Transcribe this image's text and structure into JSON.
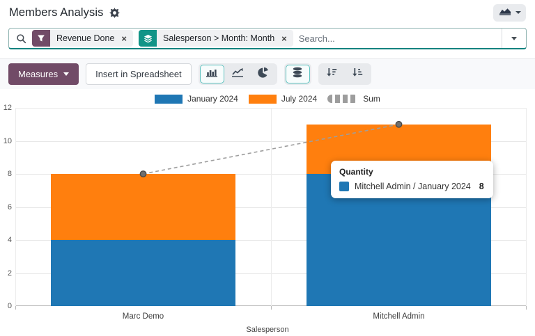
{
  "header": {
    "title": "Members Analysis"
  },
  "view_switcher": {
    "icon": "area-chart-icon"
  },
  "search": {
    "placeholder": "Search...",
    "facets": [
      {
        "kind": "filter",
        "label": "Revenue Done",
        "close": "×",
        "badge_color": "#714B67"
      },
      {
        "kind": "groupby",
        "label": "Salesperson > Month: Month",
        "close": "×",
        "badge_color": "#119487"
      }
    ]
  },
  "toolbar": {
    "measures_label": "Measures",
    "insert_spreadsheet_label": "Insert in Spreadsheet",
    "chart_type_buttons": [
      {
        "name": "bar",
        "active": true
      },
      {
        "name": "line",
        "active": false
      },
      {
        "name": "pie",
        "active": false
      }
    ],
    "stacked_button": {
      "name": "stacked",
      "active": true
    },
    "sort_buttons": [
      {
        "name": "sort-descending",
        "active": false
      },
      {
        "name": "sort-ascending",
        "active": false
      }
    ]
  },
  "chart_data": {
    "type": "bar",
    "stacked": true,
    "categories": [
      "Marc Demo",
      "Mitchell Admin"
    ],
    "series": [
      {
        "name": "January 2024",
        "color": "#1f77b4",
        "values": [
          4,
          8
        ]
      },
      {
        "name": "July 2024",
        "color": "#ff7f0e",
        "values": [
          4,
          3
        ]
      }
    ],
    "sum_line": {
      "name": "Sum",
      "values": [
        8,
        11
      ],
      "color": "#9e9e9e",
      "dashed": true
    },
    "xlabel": "Salesperson",
    "ylabel": "",
    "ylim": [
      0,
      12
    ],
    "yticks": [
      0,
      2,
      4,
      6,
      8,
      10,
      12
    ],
    "legend_position": "top",
    "grid": true
  },
  "tooltip": {
    "title": "Quantity",
    "rows": [
      {
        "swatch_color": "#1f77b4",
        "label": "Mitchell Admin / January 2024",
        "value": "8"
      }
    ]
  },
  "colors": {
    "accent_purple": "#714B67",
    "groupby_teal": "#119487",
    "active_button_border": "#5fc3c0",
    "toolbar_bg": "#f8f9fb",
    "search_border_bottom": "#11837f"
  }
}
